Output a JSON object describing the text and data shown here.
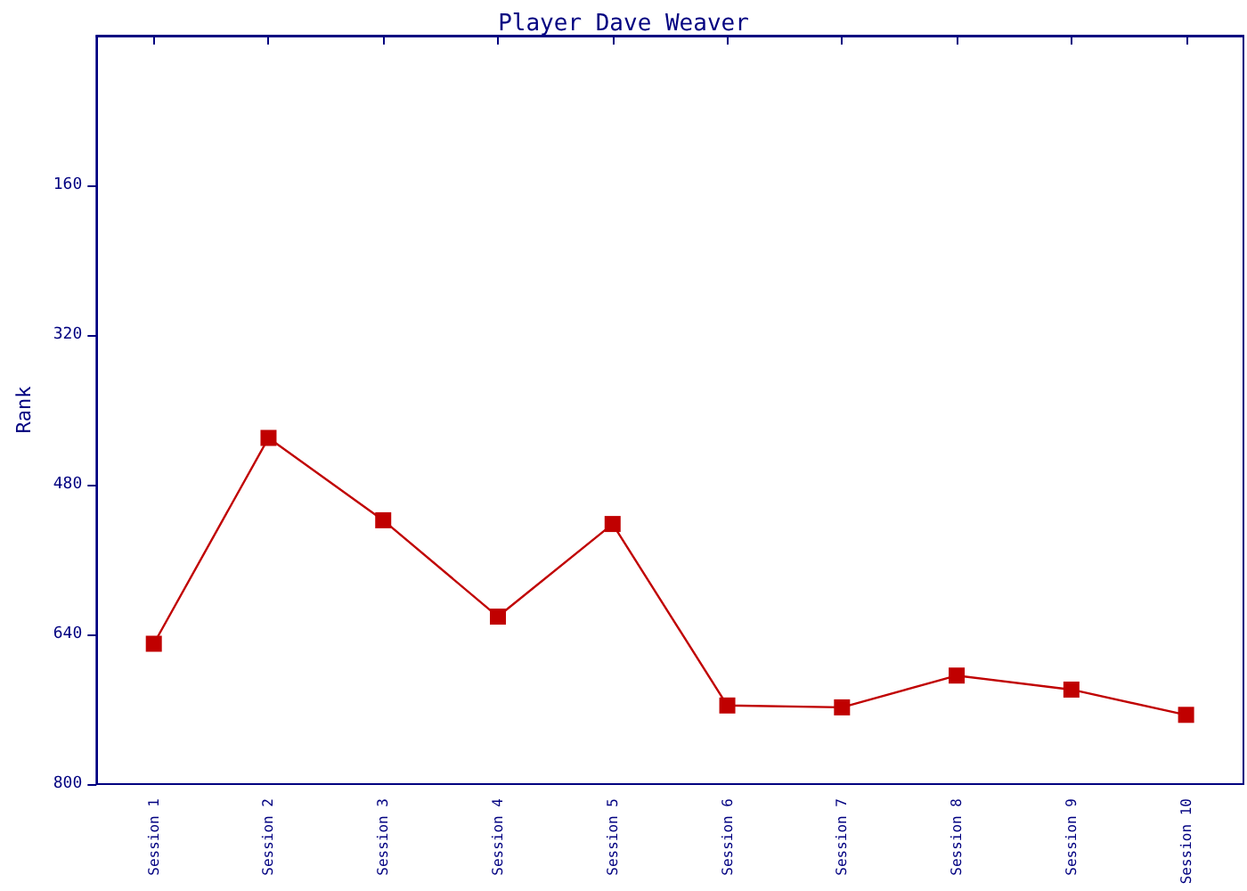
{
  "chart_data": {
    "type": "line",
    "title": "Player Dave Weaver",
    "ylabel": "Rank",
    "categories": [
      "Session 1",
      "Session 2",
      "Session 3",
      "Session 4",
      "Session 5",
      "Session 6",
      "Session 7",
      "Session 8",
      "Session 9",
      "Session 10"
    ],
    "series": [
      {
        "color": "#c00000",
        "values": [
          650,
          430,
          518,
          621,
          522,
          716,
          718,
          684,
          699,
          726
        ]
      }
    ],
    "ylim": [
      800,
      0
    ],
    "yticks": [
      160,
      320,
      480,
      640,
      800
    ],
    "grid": false,
    "marker": "square",
    "line_style": "solid"
  }
}
